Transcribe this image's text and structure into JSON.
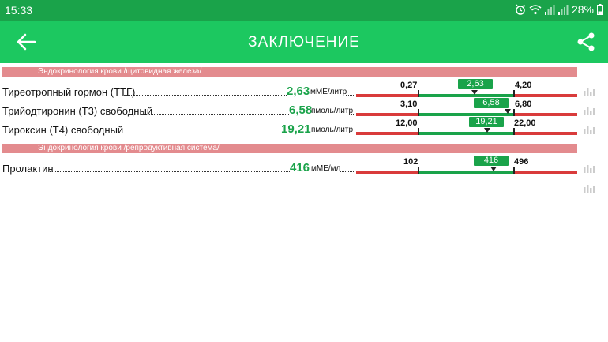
{
  "status_bar": {
    "time": "15:33",
    "battery": "28%",
    "icons": [
      "alarm-icon",
      "wifi-icon",
      "signal-icon",
      "signal-icon",
      "battery-icon"
    ]
  },
  "app_bar": {
    "title": "ЗАКЛЮЧЕНИЕ",
    "back_icon": "arrow-left-icon",
    "share_icon": "share-icon"
  },
  "sections": [
    {
      "header": "Эндокринология крови /щитовидная железа/",
      "rows": [
        {
          "name": "Тиреотропный гормон (ТТГ)",
          "value": "2,63",
          "unit": "мМЕ/литр",
          "low": "0,27",
          "high": "4,20",
          "result": "2,63"
        },
        {
          "name": "Трийодтиронин (Т3) свободный",
          "value": "6,58",
          "unit": "пмоль/литр",
          "low": "3,10",
          "high": "6,80",
          "result": "6,58"
        },
        {
          "name": "Тироксин (Т4) свободный",
          "value": "19,21",
          "unit": "пмоль/литр",
          "low": "12,00",
          "high": "22,00",
          "result": "19,21"
        }
      ]
    },
    {
      "header": "Эндокринология крови /репродуктивная система/",
      "rows": [
        {
          "name": "Пролактин",
          "value": "416",
          "unit": "мМЕ/мл",
          "low": "102",
          "high": "496",
          "result": "416"
        }
      ]
    }
  ],
  "colors": {
    "status_bar": "#1aa34a",
    "app_bar": "#1cc860",
    "section_header": "#e38b8e",
    "in_range": "#1aa34a",
    "out_of_range": "#d93b3b"
  }
}
